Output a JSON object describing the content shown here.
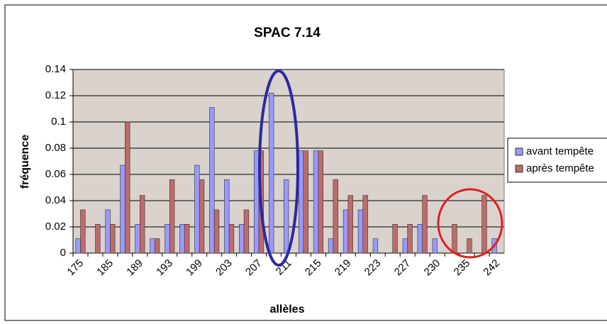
{
  "chart_data": {
    "type": "bar",
    "title": "SPAC 7.14",
    "xlabel": "allèles",
    "ylabel": "fréquence",
    "categories": [
      "175",
      null,
      "185",
      null,
      "189",
      null,
      "193",
      null,
      "199",
      null,
      "203",
      null,
      "207",
      null,
      "211",
      null,
      "215",
      null,
      "219",
      null,
      "223",
      null,
      "227",
      null,
      "230",
      null,
      "235",
      null,
      "242"
    ],
    "series": [
      {
        "name": "avant tempête",
        "color": "#9999ff",
        "values": [
          0.011,
          0,
          0.033,
          0.067,
          0.022,
          0.011,
          0.022,
          0.022,
          0.067,
          0.111,
          0.056,
          0.022,
          0.078,
          0.122,
          0.056,
          0.078,
          0.078,
          0.011,
          0.033,
          0.033,
          0.011,
          0,
          0.011,
          0.022,
          0.011,
          0,
          0,
          0,
          0.011
        ]
      },
      {
        "name": "après tempête",
        "color": "#bf6b6b",
        "values": [
          0.033,
          0.022,
          0.022,
          0.1,
          0.044,
          0.011,
          0.056,
          0.022,
          0.056,
          0.033,
          0.022,
          0.033,
          0.078,
          0,
          0,
          0.078,
          0.078,
          0.056,
          0.044,
          0.044,
          0,
          0.022,
          0.022,
          0.044,
          0,
          0.022,
          0.011,
          0.044,
          0
        ]
      }
    ],
    "ylim": [
      0,
      0.14
    ],
    "yticks": [
      0,
      0.02,
      0.04,
      0.06,
      0.08,
      0.1,
      0.12,
      0.14
    ],
    "grid": true,
    "legend": "right"
  }
}
